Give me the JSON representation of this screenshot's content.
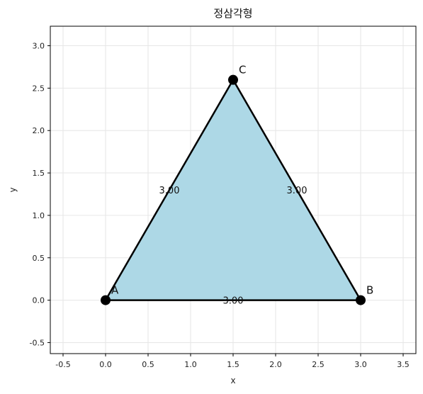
{
  "chart_data": {
    "type": "scatter",
    "title": "정삼각형",
    "xlabel": "x",
    "ylabel": "y",
    "xlim": [
      -0.65,
      3.65
    ],
    "ylim": [
      -0.63,
      3.23
    ],
    "xticks": [
      -0.5,
      0.0,
      0.5,
      1.0,
      1.5,
      2.0,
      2.5,
      3.0,
      3.5
    ],
    "yticks": [
      -0.5,
      0.0,
      0.5,
      1.0,
      1.5,
      2.0,
      2.5,
      3.0
    ],
    "grid": true,
    "points": [
      {
        "label": "A",
        "x": 0.0,
        "y": 0.0
      },
      {
        "label": "B",
        "x": 3.0,
        "y": 0.0
      },
      {
        "label": "C",
        "x": 1.5,
        "y": 2.598
      }
    ],
    "edges": [
      {
        "from": "A",
        "to": "B",
        "label": "3.00"
      },
      {
        "from": "B",
        "to": "C",
        "label": "3.00"
      },
      {
        "from": "C",
        "to": "A",
        "label": "3.00"
      }
    ],
    "fill_color": "#add8e6",
    "edge_color": "#000000",
    "point_color": "#000000"
  }
}
